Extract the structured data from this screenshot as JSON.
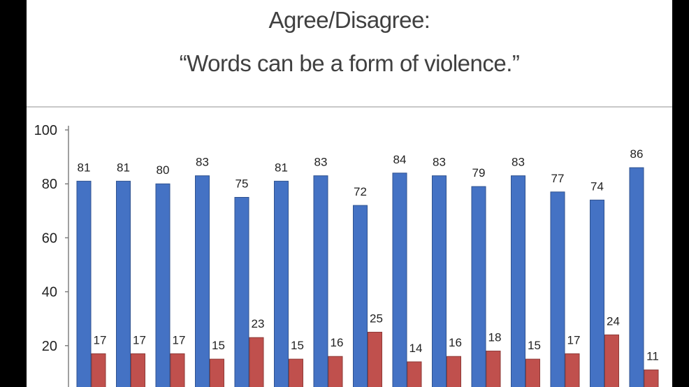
{
  "page": {
    "title_line_1": "Agree/Disagree:",
    "title_line_2": "“Words can be a form of violence.”"
  },
  "colors": {
    "agree": "#4472C4",
    "agree_border": "#2F528F",
    "disagree": "#C0504D",
    "disagree_border": "#8E3B38",
    "axis": "#808080"
  },
  "chart_data": {
    "type": "bar",
    "title": "Agree/Disagree: “Words can be a form of violence.”",
    "categories": [
      "",
      "",
      "",
      "",
      "",
      "",
      "",
      "",
      "",
      "",
      "",
      "",
      "",
      "",
      ""
    ],
    "series": [
      {
        "values": [
          81,
          81,
          80,
          83,
          75,
          81,
          83,
          72,
          84,
          83,
          79,
          83,
          77,
          74,
          86
        ]
      },
      {
        "values": [
          17,
          17,
          17,
          15,
          23,
          15,
          16,
          25,
          14,
          16,
          18,
          15,
          17,
          24,
          11
        ]
      }
    ],
    "yticks": [
      "20",
      "40",
      "60",
      "80",
      "100"
    ],
    "ylim": [
      0,
      100
    ],
    "grid": false,
    "legend": "none"
  }
}
